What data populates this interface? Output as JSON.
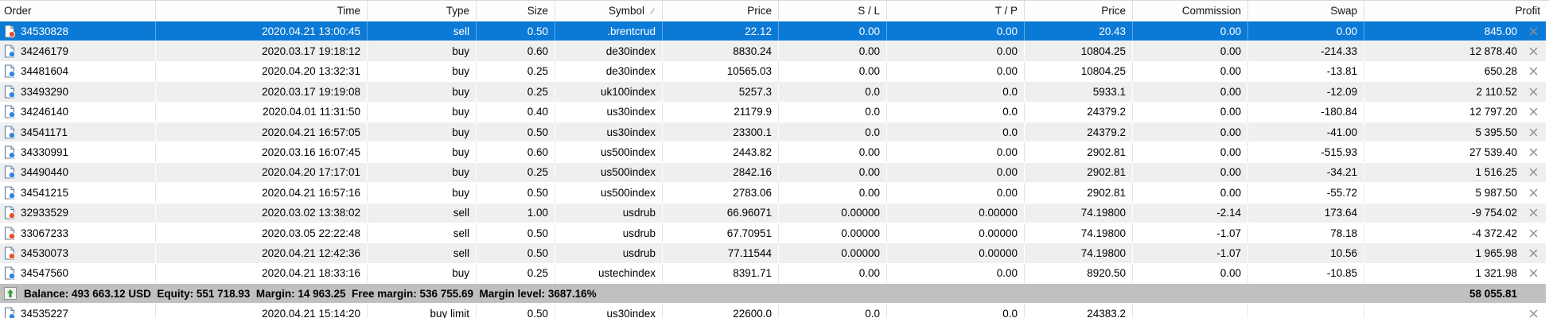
{
  "header": {
    "columns": [
      {
        "key": "order",
        "label": "Order"
      },
      {
        "key": "time",
        "label": "Time"
      },
      {
        "key": "type",
        "label": "Type"
      },
      {
        "key": "size",
        "label": "Size"
      },
      {
        "key": "symbol",
        "label": "Symbol",
        "sorted": true
      },
      {
        "key": "price_open",
        "label": "Price"
      },
      {
        "key": "sl",
        "label": "S / L"
      },
      {
        "key": "tp",
        "label": "T / P"
      },
      {
        "key": "price_current",
        "label": "Price"
      },
      {
        "key": "commission",
        "label": "Commission"
      },
      {
        "key": "swap",
        "label": "Swap"
      },
      {
        "key": "profit",
        "label": "Profit"
      }
    ]
  },
  "rows": [
    {
      "kind": "order",
      "selected": true,
      "direction": "sell",
      "order": "34530828",
      "time": "2020.04.21 13:00:45",
      "type": "sell",
      "size": "0.50",
      "symbol": ".brentcrud",
      "price_open": "22.12",
      "sl": "0.00",
      "tp": "0.00",
      "price_current": "20.43",
      "commission": "0.00",
      "swap": "0.00",
      "profit": "845.00"
    },
    {
      "kind": "order",
      "direction": "buy",
      "order": "34246179",
      "time": "2020.03.17 19:18:12",
      "type": "buy",
      "size": "0.60",
      "symbol": "de30index",
      "price_open": "8830.24",
      "sl": "0.00",
      "tp": "0.00",
      "price_current": "10804.25",
      "commission": "0.00",
      "swap": "-214.33",
      "profit": "12 878.40"
    },
    {
      "kind": "order",
      "direction": "buy",
      "order": "34481604",
      "time": "2020.04.20 13:32:31",
      "type": "buy",
      "size": "0.25",
      "symbol": "de30index",
      "price_open": "10565.03",
      "sl": "0.00",
      "tp": "0.00",
      "price_current": "10804.25",
      "commission": "0.00",
      "swap": "-13.81",
      "profit": "650.28"
    },
    {
      "kind": "order",
      "direction": "buy",
      "order": "33493290",
      "time": "2020.03.17 19:19:08",
      "type": "buy",
      "size": "0.25",
      "symbol": "uk100index",
      "price_open": "5257.3",
      "sl": "0.0",
      "tp": "0.0",
      "price_current": "5933.1",
      "commission": "0.00",
      "swap": "-12.09",
      "profit": "2 110.52"
    },
    {
      "kind": "order",
      "direction": "buy",
      "order": "34246140",
      "time": "2020.04.01 11:31:50",
      "type": "buy",
      "size": "0.40",
      "symbol": "us30index",
      "price_open": "21179.9",
      "sl": "0.0",
      "tp": "0.0",
      "price_current": "24379.2",
      "commission": "0.00",
      "swap": "-180.84",
      "profit": "12 797.20"
    },
    {
      "kind": "order",
      "direction": "buy",
      "order": "34541171",
      "time": "2020.04.21 16:57:05",
      "type": "buy",
      "size": "0.50",
      "symbol": "us30index",
      "price_open": "23300.1",
      "sl": "0.0",
      "tp": "0.0",
      "price_current": "24379.2",
      "commission": "0.00",
      "swap": "-41.00",
      "profit": "5 395.50"
    },
    {
      "kind": "order",
      "direction": "buy",
      "order": "34330991",
      "time": "2020.03.16 16:07:45",
      "type": "buy",
      "size": "0.60",
      "symbol": "us500index",
      "price_open": "2443.82",
      "sl": "0.00",
      "tp": "0.00",
      "price_current": "2902.81",
      "commission": "0.00",
      "swap": "-515.93",
      "profit": "27 539.40"
    },
    {
      "kind": "order",
      "direction": "buy",
      "order": "34490440",
      "time": "2020.04.20 17:17:01",
      "type": "buy",
      "size": "0.25",
      "symbol": "us500index",
      "price_open": "2842.16",
      "sl": "0.00",
      "tp": "0.00",
      "price_current": "2902.81",
      "commission": "0.00",
      "swap": "-34.21",
      "profit": "1 516.25"
    },
    {
      "kind": "order",
      "direction": "buy",
      "order": "34541215",
      "time": "2020.04.21 16:57:16",
      "type": "buy",
      "size": "0.50",
      "symbol": "us500index",
      "price_open": "2783.06",
      "sl": "0.00",
      "tp": "0.00",
      "price_current": "2902.81",
      "commission": "0.00",
      "swap": "-55.72",
      "profit": "5 987.50"
    },
    {
      "kind": "order",
      "direction": "sell",
      "order": "32933529",
      "time": "2020.03.02 13:38:02",
      "type": "sell",
      "size": "1.00",
      "symbol": "usdrub",
      "price_open": "66.96071",
      "sl": "0.00000",
      "tp": "0.00000",
      "price_current": "74.19800",
      "commission": "-2.14",
      "swap": "173.64",
      "profit": "-9 754.02"
    },
    {
      "kind": "order",
      "direction": "sell",
      "order": "33067233",
      "time": "2020.03.05 22:22:48",
      "type": "sell",
      "size": "0.50",
      "symbol": "usdrub",
      "price_open": "67.70951",
      "sl": "0.00000",
      "tp": "0.00000",
      "price_current": "74.19800",
      "commission": "-1.07",
      "swap": "78.18",
      "profit": "-4 372.42"
    },
    {
      "kind": "order",
      "direction": "sell",
      "order": "34530073",
      "time": "2020.04.21 12:42:36",
      "type": "sell",
      "size": "0.50",
      "symbol": "usdrub",
      "price_open": "77.11544",
      "sl": "0.00000",
      "tp": "0.00000",
      "price_current": "74.19800",
      "commission": "-1.07",
      "swap": "10.56",
      "profit": "1 965.98"
    },
    {
      "kind": "order",
      "direction": "buy",
      "order": "34547560",
      "time": "2020.04.21 18:33:16",
      "type": "buy",
      "size": "0.25",
      "symbol": "ustechindex",
      "price_open": "8391.71",
      "sl": "0.00",
      "tp": "0.00",
      "price_current": "8920.50",
      "commission": "0.00",
      "swap": "-10.85",
      "profit": "1 321.98"
    },
    {
      "kind": "balance",
      "text": "Balance: 493 663.12 USD  Equity: 551 718.93  Margin: 14 963.25  Free margin: 536 755.69  Margin level: 3687.16%",
      "profit": "58 055.81"
    },
    {
      "kind": "order",
      "direction": "buy",
      "order": "34535227",
      "time": "2020.04.21 15:14:20",
      "type": "buy limit",
      "size": "0.50",
      "symbol": "us30index",
      "price_open": "22600.0",
      "sl": "0.0",
      "tp": "0.0",
      "price_current": "24383.2",
      "commission": "",
      "swap": "",
      "profit": ""
    }
  ],
  "colors": {
    "selection_bg": "#0b79d6",
    "selection_text": "#ffffff",
    "row_bg": "#ffffff",
    "row_alt_bg": "#efefef",
    "balance_bg": "#c0c0c0",
    "header_bg": "#fdfdfd",
    "text": "#000000",
    "grid_line": "#e6e6e6",
    "buy_dot": "#2e86dd",
    "sell_dot": "#e8502a",
    "doc_outline": "#5b7c9d",
    "close_x": "#8f8f8f",
    "balance_arrow": "#2ca02c"
  }
}
